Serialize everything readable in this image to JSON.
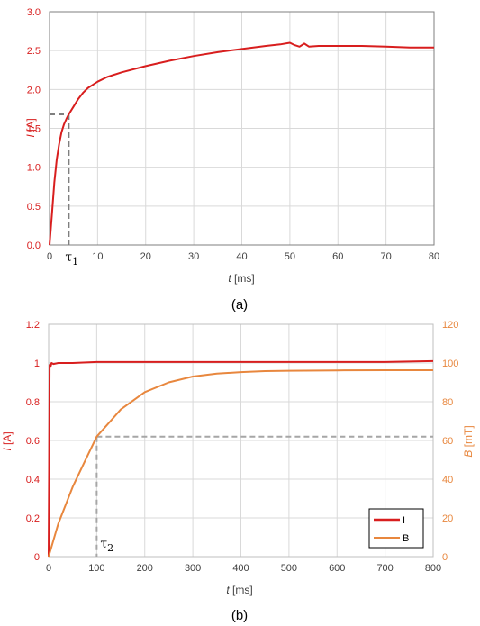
{
  "chart_data": [
    {
      "type": "line",
      "caption": "(a)",
      "xlabel_var": "t",
      "xlabel_unit": "[ms]",
      "ylabel_var": "I",
      "ylabel_unit": "[A]",
      "xlim": [
        0,
        80
      ],
      "ylim": [
        0,
        3.0
      ],
      "xticks": [
        0,
        10,
        20,
        30,
        40,
        50,
        60,
        70,
        80
      ],
      "xtick_labels": [
        "0",
        "10",
        "20",
        "30",
        "40",
        "50",
        "60",
        "70",
        "80"
      ],
      "yticks": [
        0,
        0.5,
        1.0,
        1.5,
        2.0,
        2.5,
        3.0
      ],
      "ytick_labels": [
        "0.0",
        "0.5",
        "1.0",
        "1.5",
        "2.0",
        "2.5",
        "3.0"
      ],
      "grid": true,
      "series": [
        {
          "color": "#d81e1e",
          "x": [
            0,
            0.5,
            1,
            1.5,
            2,
            2.5,
            3,
            3.5,
            4,
            5,
            6,
            7,
            8,
            9,
            10,
            12,
            15,
            20,
            25,
            30,
            35,
            40,
            45,
            48,
            50,
            51,
            52,
            53,
            54,
            56,
            60,
            65,
            70,
            75,
            80
          ],
          "y": [
            0,
            0.4,
            0.8,
            1.1,
            1.3,
            1.45,
            1.55,
            1.62,
            1.68,
            1.78,
            1.88,
            1.96,
            2.02,
            2.06,
            2.1,
            2.16,
            2.22,
            2.3,
            2.37,
            2.43,
            2.48,
            2.52,
            2.56,
            2.58,
            2.6,
            2.57,
            2.55,
            2.59,
            2.55,
            2.56,
            2.56,
            2.56,
            2.55,
            2.54,
            2.54
          ]
        }
      ],
      "annotation": {
        "label": "τ",
        "subscript": "1",
        "x": 4,
        "y": 1.68
      }
    },
    {
      "type": "line",
      "caption": "(b)",
      "xlabel_var": "t",
      "xlabel_unit": "[ms]",
      "ylabel_var": "I",
      "ylabel_unit": "[A]",
      "y2label_var": "B",
      "y2label_unit": "[mT]",
      "xlim": [
        0,
        800
      ],
      "ylim": [
        0,
        1.2
      ],
      "y2lim": [
        0,
        120
      ],
      "xticks": [
        0,
        100,
        200,
        300,
        400,
        500,
        600,
        700,
        800
      ],
      "xtick_labels": [
        "0",
        "100",
        "200",
        "300",
        "400",
        "500",
        "600",
        "700",
        "800"
      ],
      "yticks": [
        0,
        0.2,
        0.4,
        0.6,
        0.8,
        1.0,
        1.2
      ],
      "ytick_labels": [
        "0",
        "0.2",
        "0.4",
        "0.6",
        "0.8",
        "1",
        "1.2"
      ],
      "y2ticks": [
        0,
        20,
        40,
        60,
        80,
        100,
        120
      ],
      "y2tick_labels": [
        "0",
        "20",
        "40",
        "60",
        "80",
        "100",
        "120"
      ],
      "grid": true,
      "legend_position": "bottom-right",
      "series": [
        {
          "name": "I",
          "color": "#d81e1e",
          "axis": "left",
          "x": [
            0,
            2,
            4,
            6,
            10,
            20,
            50,
            100,
            200,
            300,
            400,
            500,
            600,
            700,
            800
          ],
          "y": [
            0,
            0.99,
            0.98,
            1.0,
            0.995,
            1.0,
            1.0,
            1.005,
            1.005,
            1.005,
            1.005,
            1.005,
            1.005,
            1.005,
            1.01
          ]
        },
        {
          "name": "B",
          "color": "#e8873e",
          "axis": "right",
          "x": [
            0,
            20,
            50,
            75,
            100,
            150,
            200,
            250,
            300,
            350,
            400,
            450,
            500,
            600,
            700,
            800
          ],
          "y": [
            0,
            17,
            36,
            49,
            62,
            76,
            85,
            90,
            93,
            94.5,
            95.3,
            95.8,
            96,
            96.2,
            96.3,
            96.3
          ]
        }
      ],
      "annotation": {
        "label": "τ",
        "subscript": "2",
        "x": 100,
        "y2": 62
      }
    }
  ]
}
